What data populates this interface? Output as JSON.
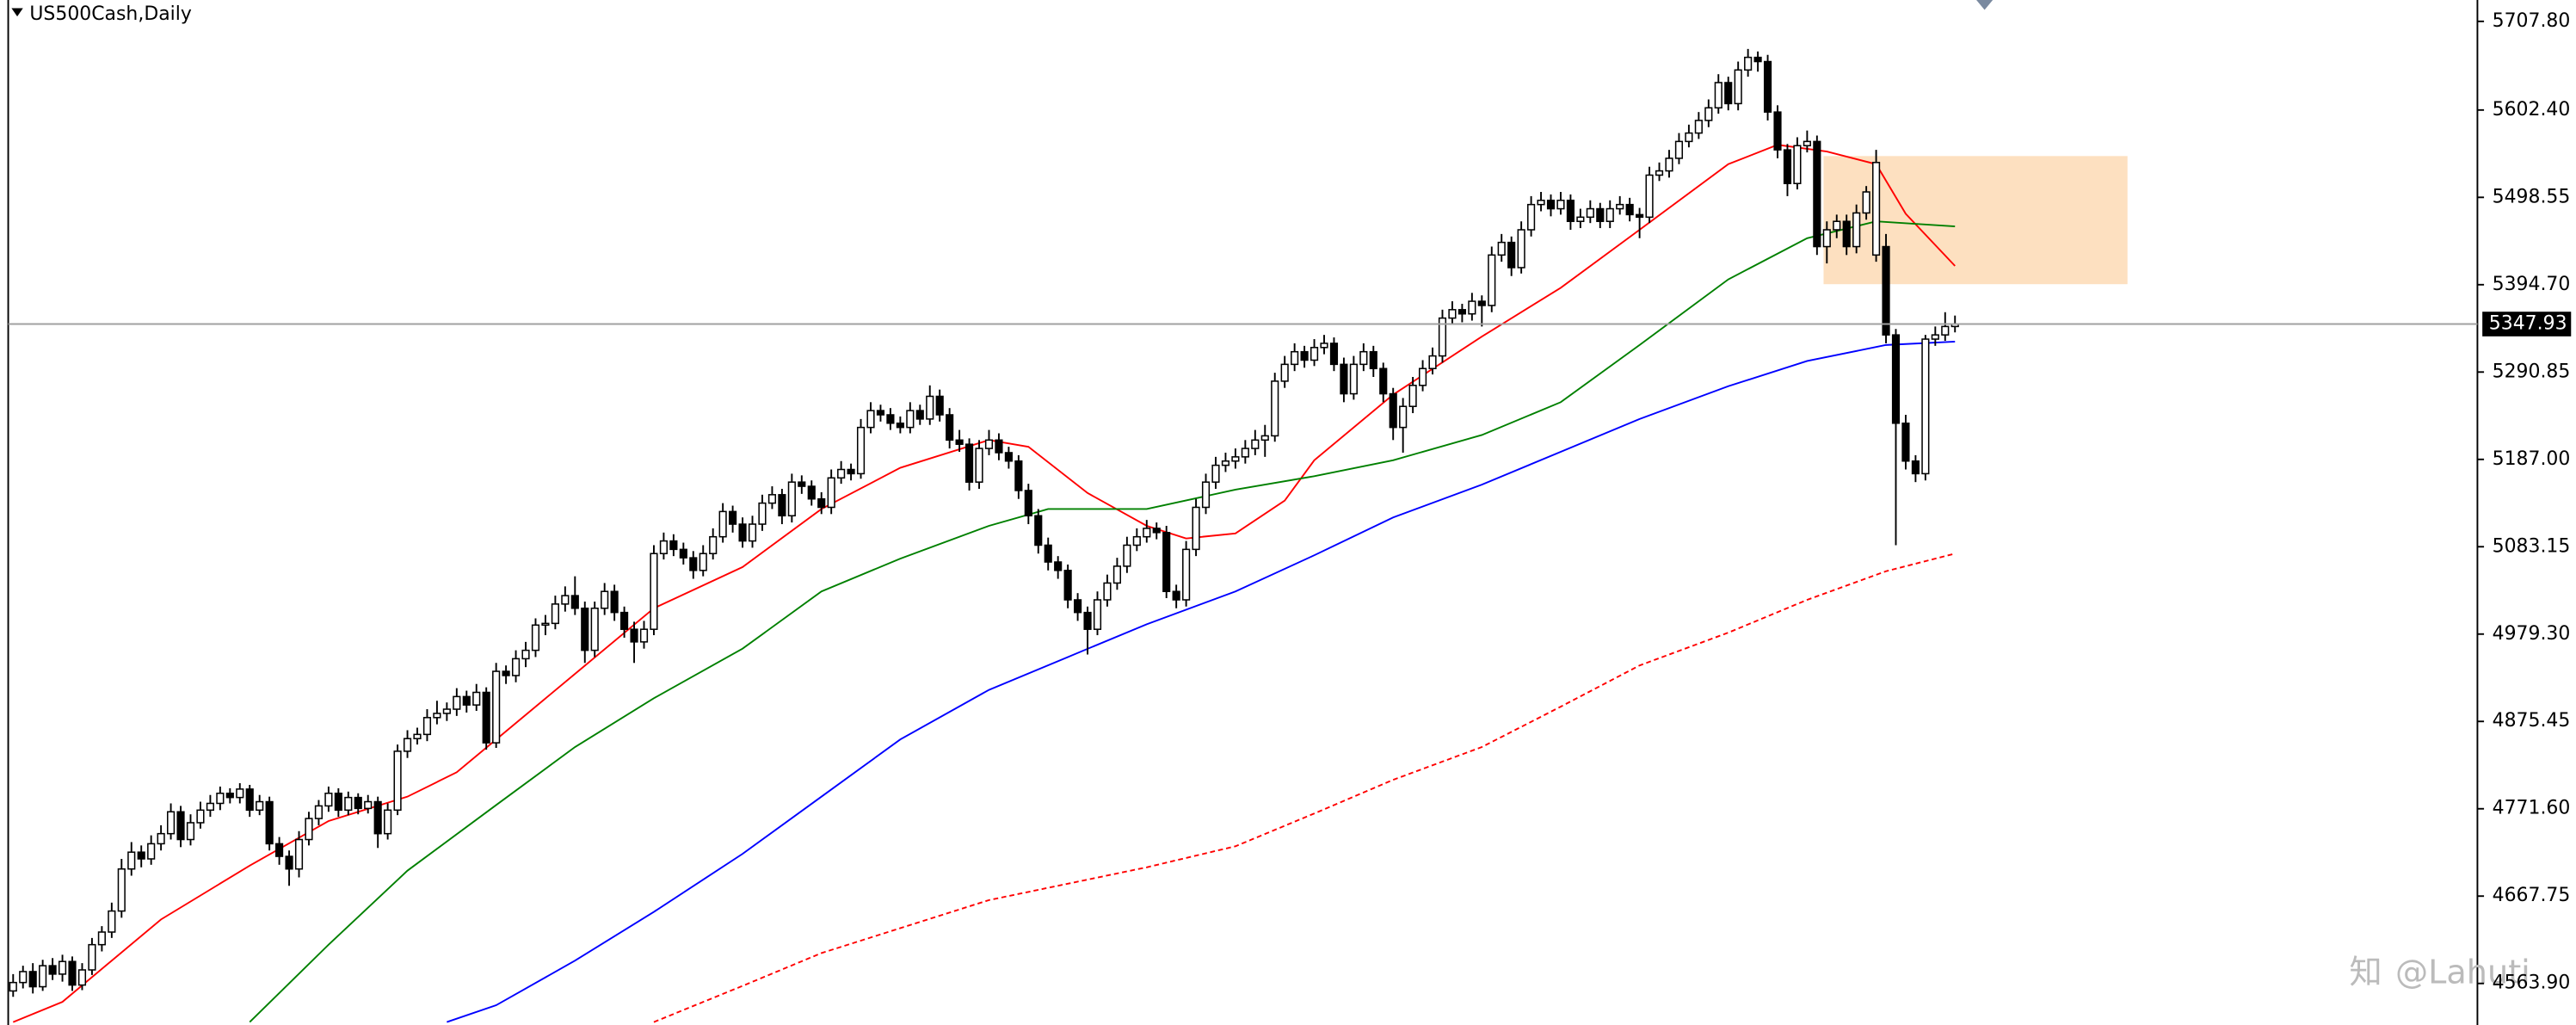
{
  "chart_data": {
    "type": "candlestick",
    "title": "US500Cash,Daily",
    "watermark": "@Lahuti",
    "ylim": [
      4514.5,
      5733.2
    ],
    "yticks": [
      {
        "value": 5707.8,
        "label": "5707.80"
      },
      {
        "value": 5602.4,
        "label": "5602.40"
      },
      {
        "value": 5498.55,
        "label": "5498.55"
      },
      {
        "value": 5394.7,
        "label": "5394.70"
      },
      {
        "value": 5290.85,
        "label": "5290.85"
      },
      {
        "value": 5187,
        "label": "5187.00"
      },
      {
        "value": 5083.15,
        "label": "5083.15"
      },
      {
        "value": 4979.3,
        "label": "4979.30"
      },
      {
        "value": 4875.45,
        "label": "4875.45"
      },
      {
        "value": 4771.6,
        "label": "4771.60"
      },
      {
        "value": 4667.75,
        "label": "4667.75"
      },
      {
        "value": 4563.9,
        "label": "4563.90"
      }
    ],
    "last_price": 5347.93,
    "up_color": "#ffffff",
    "down_color": "#000000",
    "ohlc": [
      [
        4555,
        4575,
        4548,
        4565
      ],
      [
        4565,
        4585,
        4558,
        4578
      ],
      [
        4578,
        4588,
        4552,
        4560
      ],
      [
        4560,
        4592,
        4555,
        4585
      ],
      [
        4585,
        4594,
        4568,
        4575
      ],
      [
        4575,
        4598,
        4566,
        4590
      ],
      [
        4590,
        4596,
        4555,
        4562
      ],
      [
        4562,
        4588,
        4556,
        4580
      ],
      [
        4580,
        4618,
        4574,
        4610
      ],
      [
        4610,
        4632,
        4602,
        4625
      ],
      [
        4625,
        4660,
        4618,
        4650
      ],
      [
        4650,
        4712,
        4642,
        4700
      ],
      [
        4700,
        4732,
        4692,
        4720
      ],
      [
        4720,
        4728,
        4702,
        4712
      ],
      [
        4712,
        4740,
        4705,
        4730
      ],
      [
        4730,
        4752,
        4722,
        4742
      ],
      [
        4742,
        4778,
        4735,
        4768
      ],
      [
        4768,
        4775,
        4726,
        4735
      ],
      [
        4735,
        4765,
        4728,
        4755
      ],
      [
        4755,
        4780,
        4748,
        4770
      ],
      [
        4770,
        4788,
        4762,
        4778
      ],
      [
        4778,
        4798,
        4770,
        4790
      ],
      [
        4790,
        4796,
        4778,
        4785
      ],
      [
        4785,
        4802,
        4778,
        4795
      ],
      [
        4795,
        4800,
        4762,
        4770
      ],
      [
        4770,
        4788,
        4764,
        4780
      ],
      [
        4780,
        4786,
        4722,
        4730
      ],
      [
        4730,
        4738,
        4705,
        4715
      ],
      [
        4715,
        4722,
        4680,
        4700
      ],
      [
        4700,
        4745,
        4690,
        4735
      ],
      [
        4735,
        4768,
        4728,
        4760
      ],
      [
        4760,
        4782,
        4752,
        4775
      ],
      [
        4775,
        4798,
        4768,
        4790
      ],
      [
        4790,
        4796,
        4762,
        4770
      ],
      [
        4770,
        4792,
        4764,
        4785
      ],
      [
        4785,
        4790,
        4765,
        4772
      ],
      [
        4772,
        4788,
        4766,
        4780
      ],
      [
        4780,
        4786,
        4725,
        4742
      ],
      [
        4742,
        4778,
        4735,
        4770
      ],
      [
        4770,
        4848,
        4764,
        4840
      ],
      [
        4840,
        4865,
        4832,
        4855
      ],
      [
        4855,
        4868,
        4848,
        4860
      ],
      [
        4860,
        4890,
        4852,
        4880
      ],
      [
        4880,
        4900,
        4872,
        4885
      ],
      [
        4885,
        4898,
        4876,
        4890
      ],
      [
        4890,
        4915,
        4882,
        4905
      ],
      [
        4905,
        4912,
        4886,
        4895
      ],
      [
        4895,
        4920,
        4888,
        4910
      ],
      [
        4910,
        4916,
        4842,
        4850
      ],
      [
        4850,
        4945,
        4844,
        4935
      ],
      [
        4935,
        4942,
        4920,
        4930
      ],
      [
        4930,
        4960,
        4922,
        4950
      ],
      [
        4950,
        4970,
        4940,
        4960
      ],
      [
        4960,
        4998,
        4952,
        4990
      ],
      [
        4990,
        5002,
        4978,
        4992
      ],
      [
        4992,
        5025,
        4985,
        5015
      ],
      [
        5015,
        5036,
        5006,
        5025
      ],
      [
        5025,
        5048,
        5002,
        5010
      ],
      [
        5010,
        5018,
        4945,
        4960
      ],
      [
        4960,
        5018,
        4952,
        5010
      ],
      [
        5010,
        5040,
        5002,
        5030
      ],
      [
        5030,
        5038,
        4995,
        5005
      ],
      [
        5005,
        5012,
        4975,
        4985
      ],
      [
        4985,
        4994,
        4945,
        4970
      ],
      [
        4970,
        4995,
        4962,
        4985
      ],
      [
        4985,
        5085,
        4978,
        5075
      ],
      [
        5075,
        5100,
        5068,
        5090
      ],
      [
        5090,
        5098,
        5072,
        5080
      ],
      [
        5080,
        5088,
        5062,
        5070
      ],
      [
        5070,
        5078,
        5045,
        5055
      ],
      [
        5055,
        5085,
        5048,
        5075
      ],
      [
        5075,
        5105,
        5068,
        5095
      ],
      [
        5095,
        5135,
        5088,
        5125
      ],
      [
        5125,
        5132,
        5100,
        5110
      ],
      [
        5110,
        5118,
        5082,
        5090
      ],
      [
        5090,
        5120,
        5082,
        5110
      ],
      [
        5110,
        5145,
        5102,
        5135
      ],
      [
        5135,
        5155,
        5128,
        5145
      ],
      [
        5145,
        5152,
        5110,
        5120
      ],
      [
        5120,
        5170,
        5112,
        5160
      ],
      [
        5160,
        5168,
        5146,
        5155
      ],
      [
        5155,
        5162,
        5132,
        5140
      ],
      [
        5140,
        5148,
        5122,
        5130
      ],
      [
        5130,
        5175,
        5122,
        5165
      ],
      [
        5165,
        5185,
        5158,
        5175
      ],
      [
        5175,
        5182,
        5162,
        5170
      ],
      [
        5170,
        5235,
        5164,
        5225
      ],
      [
        5225,
        5255,
        5218,
        5245
      ],
      [
        5245,
        5252,
        5232,
        5240
      ],
      [
        5240,
        5248,
        5222,
        5230
      ],
      [
        5230,
        5238,
        5218,
        5225
      ],
      [
        5225,
        5255,
        5218,
        5245
      ],
      [
        5245,
        5252,
        5228,
        5235
      ],
      [
        5235,
        5275,
        5228,
        5262
      ],
      [
        5262,
        5270,
        5232,
        5240
      ],
      [
        5240,
        5248,
        5200,
        5210
      ],
      [
        5210,
        5222,
        5196,
        5205
      ],
      [
        5205,
        5212,
        5150,
        5160
      ],
      [
        5160,
        5210,
        5152,
        5200
      ],
      [
        5200,
        5222,
        5192,
        5210
      ],
      [
        5210,
        5218,
        5186,
        5195
      ],
      [
        5195,
        5202,
        5176,
        5185
      ],
      [
        5185,
        5192,
        5140,
        5150
      ],
      [
        5150,
        5158,
        5110,
        5120
      ],
      [
        5120,
        5128,
        5075,
        5085
      ],
      [
        5085,
        5094,
        5055,
        5065
      ],
      [
        5065,
        5072,
        5045,
        5055
      ],
      [
        5055,
        5062,
        5010,
        5020
      ],
      [
        5020,
        5028,
        4995,
        5005
      ],
      [
        5005,
        5012,
        4955,
        4985
      ],
      [
        4985,
        5030,
        4978,
        5020
      ],
      [
        5020,
        5050,
        5012,
        5040
      ],
      [
        5040,
        5070,
        5032,
        5060
      ],
      [
        5060,
        5095,
        5052,
        5085
      ],
      [
        5085,
        5105,
        5078,
        5095
      ],
      [
        5095,
        5115,
        5088,
        5105
      ],
      [
        5105,
        5112,
        5092,
        5100
      ],
      [
        5100,
        5108,
        5022,
        5030
      ],
      [
        5030,
        5038,
        5010,
        5020
      ],
      [
        5020,
        5090,
        5012,
        5080
      ],
      [
        5080,
        5140,
        5072,
        5130
      ],
      [
        5130,
        5170,
        5122,
        5160
      ],
      [
        5160,
        5190,
        5152,
        5180
      ],
      [
        5180,
        5195,
        5172,
        5185
      ],
      [
        5185,
        5200,
        5176,
        5190
      ],
      [
        5190,
        5210,
        5182,
        5200
      ],
      [
        5200,
        5222,
        5192,
        5210
      ],
      [
        5210,
        5228,
        5190,
        5215
      ],
      [
        5215,
        5290,
        5208,
        5280
      ],
      [
        5280,
        5310,
        5272,
        5300
      ],
      [
        5300,
        5325,
        5292,
        5315
      ],
      [
        5315,
        5322,
        5296,
        5305
      ],
      [
        5305,
        5330,
        5298,
        5320
      ],
      [
        5320,
        5335,
        5312,
        5325
      ],
      [
        5325,
        5332,
        5292,
        5300
      ],
      [
        5300,
        5308,
        5255,
        5265
      ],
      [
        5265,
        5310,
        5258,
        5300
      ],
      [
        5300,
        5325,
        5292,
        5315
      ],
      [
        5315,
        5322,
        5285,
        5295
      ],
      [
        5295,
        5302,
        5255,
        5265
      ],
      [
        5265,
        5272,
        5210,
        5225
      ],
      [
        5225,
        5260,
        5195,
        5250
      ],
      [
        5250,
        5285,
        5242,
        5275
      ],
      [
        5275,
        5305,
        5268,
        5295
      ],
      [
        5295,
        5320,
        5288,
        5310
      ],
      [
        5310,
        5365,
        5302,
        5355
      ],
      [
        5355,
        5375,
        5348,
        5365
      ],
      [
        5365,
        5372,
        5350,
        5360
      ],
      [
        5360,
        5385,
        5352,
        5375
      ],
      [
        5375,
        5382,
        5345,
        5370
      ],
      [
        5370,
        5440,
        5362,
        5430
      ],
      [
        5430,
        5455,
        5422,
        5445
      ],
      [
        5445,
        5452,
        5405,
        5415
      ],
      [
        5415,
        5470,
        5408,
        5460
      ],
      [
        5460,
        5500,
        5452,
        5490
      ],
      [
        5490,
        5505,
        5482,
        5495
      ],
      [
        5495,
        5502,
        5476,
        5485
      ],
      [
        5485,
        5505,
        5478,
        5495
      ],
      [
        5495,
        5502,
        5460,
        5470
      ],
      [
        5470,
        5485,
        5462,
        5475
      ],
      [
        5475,
        5495,
        5468,
        5485
      ],
      [
        5485,
        5492,
        5462,
        5470
      ],
      [
        5470,
        5495,
        5462,
        5485
      ],
      [
        5485,
        5500,
        5478,
        5490
      ],
      [
        5490,
        5498,
        5470,
        5478
      ],
      [
        5478,
        5486,
        5450,
        5475
      ],
      [
        5475,
        5535,
        5468,
        5525
      ],
      [
        5525,
        5540,
        5518,
        5530
      ],
      [
        5530,
        5555,
        5522,
        5545
      ],
      [
        5545,
        5575,
        5538,
        5565
      ],
      [
        5565,
        5585,
        5558,
        5575
      ],
      [
        5575,
        5600,
        5568,
        5590
      ],
      [
        5590,
        5615,
        5582,
        5605
      ],
      [
        5605,
        5645,
        5598,
        5635
      ],
      [
        5635,
        5642,
        5602,
        5610
      ],
      [
        5610,
        5660,
        5602,
        5650
      ],
      [
        5650,
        5675,
        5642,
        5665
      ],
      [
        5665,
        5672,
        5648,
        5660
      ],
      [
        5660,
        5668,
        5590,
        5600
      ],
      [
        5600,
        5608,
        5545,
        5555
      ],
      [
        5555,
        5562,
        5500,
        5515
      ],
      [
        5515,
        5570,
        5508,
        5560
      ],
      [
        5560,
        5578,
        5552,
        5565
      ],
      [
        5565,
        5572,
        5430,
        5440
      ],
      [
        5440,
        5470,
        5420,
        5460
      ],
      [
        5460,
        5478,
        5450,
        5470
      ],
      [
        5470,
        5478,
        5430,
        5440
      ],
      [
        5440,
        5490,
        5432,
        5480
      ],
      [
        5480,
        5512,
        5472,
        5505
      ],
      [
        5430,
        5555,
        5422,
        5540
      ],
      [
        5440,
        5455,
        5325,
        5335
      ],
      [
        5335,
        5342,
        5085,
        5230
      ],
      [
        5230,
        5240,
        5175,
        5185
      ],
      [
        5185,
        5192,
        5160,
        5170
      ],
      [
        5170,
        5335,
        5162,
        5330
      ],
      [
        5330,
        5345,
        5322,
        5335
      ],
      [
        5335,
        5362,
        5328,
        5345
      ],
      [
        5345,
        5358,
        5338,
        5348
      ]
    ],
    "lines": [
      {
        "color": "#ff0000",
        "dashed": false,
        "x": [
          0,
          5,
          15,
          24,
          32,
          40,
          45,
          49,
          57,
          65,
          74,
          82,
          90,
          99,
          103,
          109,
          115,
          119,
          124,
          129,
          132,
          140,
          149,
          157,
          165,
          174,
          179,
          184,
          189,
          192,
          197
        ],
        "values": [
          4518,
          4542,
          4640,
          4704,
          4757,
          4786,
          4815,
          4854,
          4932,
          5010,
          5059,
          5128,
          5177,
          5210,
          5202,
          5147,
          5108,
          5093,
          5099,
          5138,
          5186,
          5264,
          5333,
          5391,
          5460,
          5538,
          5561,
          5553,
          5538,
          5479,
          5417
        ]
      },
      {
        "color": "#008000",
        "dashed": false,
        "x": [
          24,
          32,
          40,
          49,
          57,
          65,
          74,
          82,
          90,
          99,
          105,
          115,
          124,
          132,
          140,
          149,
          157,
          165,
          174,
          182,
          189,
          197
        ],
        "values": [
          4518,
          4610,
          4698,
          4776,
          4845,
          4903,
          4962,
          5030,
          5069,
          5108,
          5128,
          5128,
          5151,
          5167,
          5186,
          5216,
          5255,
          5323,
          5401,
          5450,
          5470,
          5464
        ]
      },
      {
        "color": "#0000ff",
        "dashed": false,
        "x": [
          44,
          49,
          57,
          65,
          74,
          82,
          90,
          99,
          107,
          115,
          124,
          132,
          140,
          149,
          157,
          165,
          174,
          182,
          190,
          197
        ],
        "values": [
          4518,
          4538,
          4591,
          4649,
          4718,
          4786,
          4854,
          4913,
          4952,
          4991,
          5030,
          5073,
          5118,
          5157,
          5196,
          5235,
          5274,
          5304,
          5323,
          5327
        ]
      },
      {
        "color": "#ff0000",
        "dashed": true,
        "x": [
          65,
          74,
          82,
          99,
          115,
          124,
          132,
          140,
          149,
          157,
          165,
          174,
          182,
          190,
          197
        ],
        "values": [
          4518,
          4561,
          4600,
          4663,
          4702,
          4727,
          4766,
          4806,
          4845,
          4893,
          4942,
          4981,
          5020,
          5054,
          5075
        ]
      }
    ]
  }
}
